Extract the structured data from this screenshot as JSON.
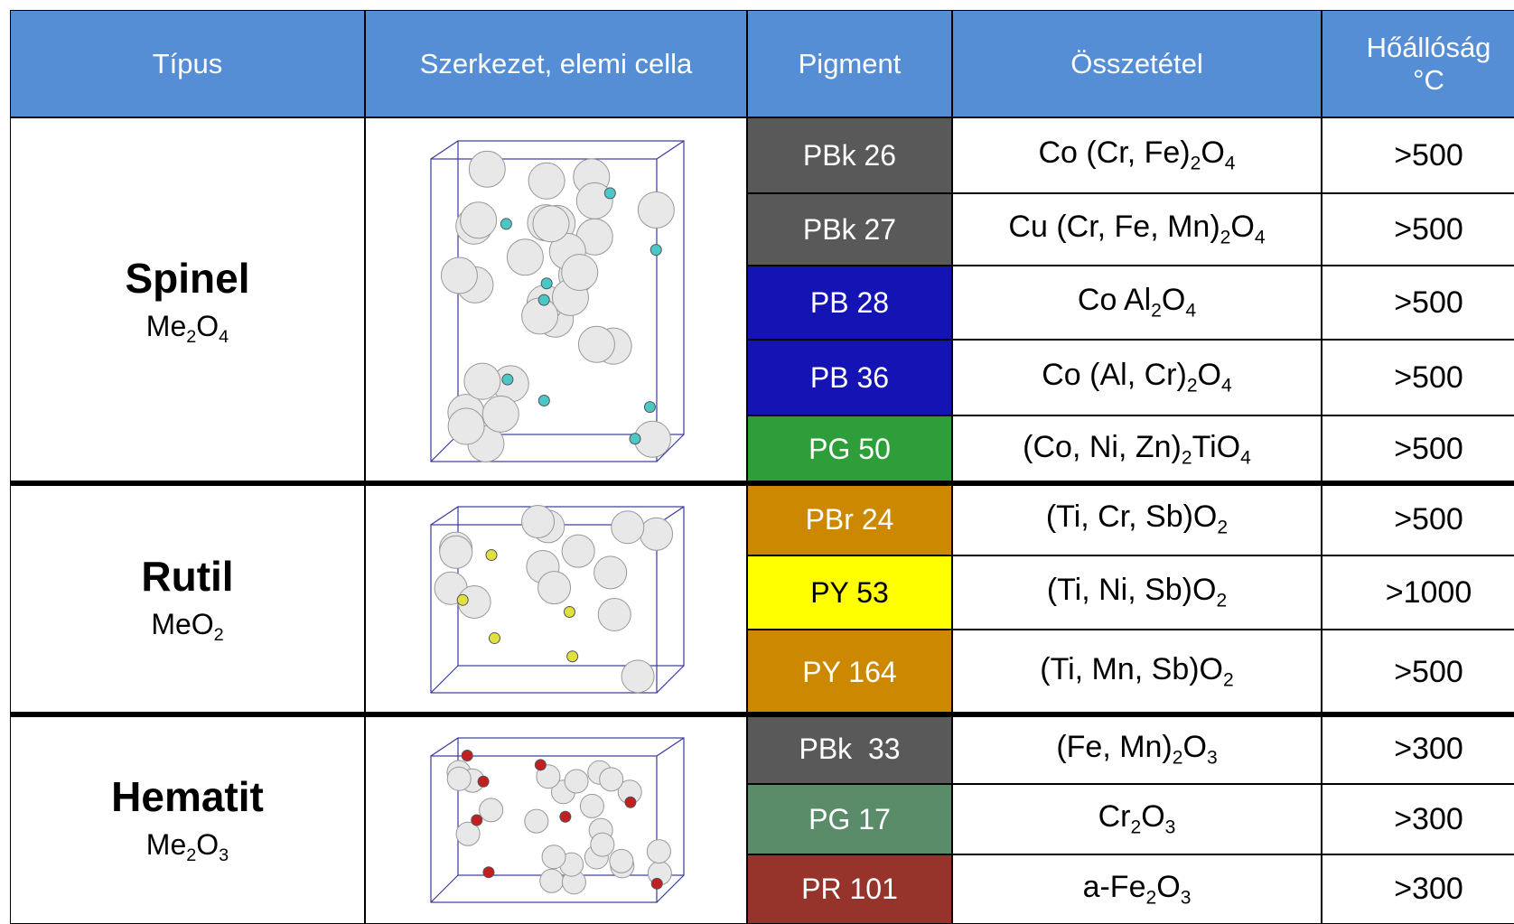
{
  "header": [
    "Típus",
    "Szerkezet, elemi cella",
    "Pigment",
    "Összetétel",
    "Hőállóság\n°C"
  ],
  "groups": [
    {
      "name": "Spinel",
      "formula": [
        "Me",
        "2",
        "O",
        "4"
      ],
      "rows": [
        {
          "pigment": "PBk 26",
          "color": "#595959",
          "formula": [
            "Co (Cr, Fe)",
            "2",
            "O",
            "4"
          ],
          "heat": ">500"
        },
        {
          "pigment": "PBk 27",
          "color": "#595959",
          "formula": [
            "Cu (Cr, Fe, Mn)",
            "2",
            "O",
            "4"
          ],
          "heat": ">500"
        },
        {
          "pigment": "PB 28",
          "color": "#1414b4",
          "formula": [
            "Co Al",
            "2",
            "O",
            "4"
          ],
          "heat": ">500"
        },
        {
          "pigment": "PB 36",
          "color": "#1414b4",
          "formula": [
            "Co (Al, Cr)",
            "2",
            "O",
            "4"
          ],
          "heat": ">500"
        },
        {
          "pigment": "PG 50",
          "color": "#2e9e3a",
          "formula": [
            "(Co, Ni, Zn)",
            "2",
            "TiO",
            "4"
          ],
          "heat": ">500"
        }
      ]
    },
    {
      "name": "Rutil",
      "formula": [
        "MeO",
        "2"
      ],
      "rows": [
        {
          "pigment": "PBr 24",
          "color": "#cc8800",
          "formula": [
            "(Ti, Cr, Sb)O",
            "2"
          ],
          "heat": ">500"
        },
        {
          "pigment": "PY 53",
          "color": "#ffff00",
          "formula": [
            "(Ti, Ni, Sb)O",
            "2"
          ],
          "heat": ">1000"
        },
        {
          "pigment": "PY 164",
          "color": "#cc8800",
          "formula": [
            "(Ti, Mn, Sb)O",
            "2"
          ],
          "heat": ">500"
        }
      ]
    },
    {
      "name": "Hematit",
      "formula": [
        "Me",
        "2",
        "O",
        "3"
      ],
      "rows": [
        {
          "pigment": "PBk  33",
          "color": "#595959",
          "formula": [
            "(Fe, Mn)",
            "2",
            "O",
            "3"
          ],
          "heat": ">300"
        },
        {
          "pigment": "PG 17",
          "color": "#5a8c6a",
          "formula": [
            "Cr",
            "2",
            "O",
            "3"
          ],
          "heat": ">300"
        },
        {
          "pigment": "PR 101",
          "color": "#96332b",
          "formula": [
            "a-Fe",
            "2",
            "O",
            "3"
          ],
          "heat": ">300"
        }
      ]
    }
  ]
}
